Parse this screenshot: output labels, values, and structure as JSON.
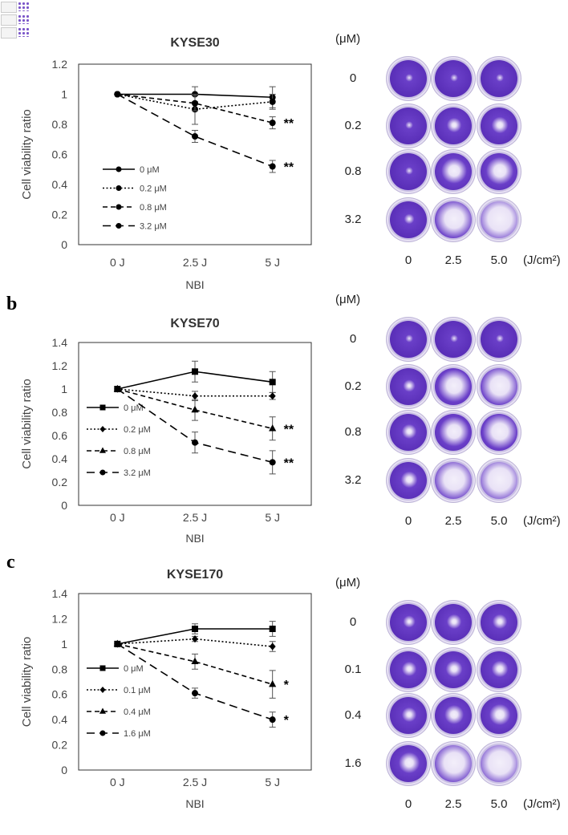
{
  "figure": {
    "panel_labels": [
      "b",
      "c"
    ],
    "x_axis_title": "NBI",
    "y_axis_title": "Cell viability ratio",
    "concentration_unit": "(μM)",
    "energy_unit": "(J/cm²)",
    "energy_values": [
      "0",
      "2.5",
      "5.0"
    ]
  },
  "chart_data": [
    {
      "type": "line",
      "title": "KYSE30",
      "xlabel": "NBI",
      "ylabel": "Cell viability ratio",
      "categories": [
        "0 J",
        "2.5 J",
        "5 J"
      ],
      "yticks": [
        "0",
        "0.2",
        "0.4",
        "0.6",
        "0.8",
        "1",
        "1.2"
      ],
      "ylim": [
        0,
        1.2
      ],
      "legend_position": "bottom-left",
      "series": [
        {
          "name": "0 μM",
          "dash": "solid",
          "marker": "circle",
          "values": [
            1.0,
            1.0,
            0.98
          ],
          "errors": [
            0,
            0.05,
            0.07
          ],
          "significance": ""
        },
        {
          "name": "0.2 μM",
          "dash": "dotted",
          "marker": "circle",
          "values": [
            1.0,
            0.9,
            0.95
          ],
          "errors": [
            0,
            0.1,
            0.05
          ],
          "significance": ""
        },
        {
          "name": "0.8 μM",
          "dash": "dashed",
          "marker": "circle",
          "values": [
            1.0,
            0.94,
            0.81
          ],
          "errors": [
            0,
            0.05,
            0.04
          ],
          "significance": "**"
        },
        {
          "name": "3.2 μM",
          "dash": "longdash",
          "marker": "circle",
          "values": [
            1.0,
            0.72,
            0.52
          ],
          "errors": [
            0,
            0.04,
            0.04
          ],
          "significance": "**"
        }
      ]
    },
    {
      "type": "line",
      "title": "KYSE70",
      "xlabel": "NBI",
      "ylabel": "Cell viability ratio",
      "categories": [
        "0 J",
        "2.5 J",
        "5 J"
      ],
      "yticks": [
        "0",
        "0.2",
        "0.4",
        "0.6",
        "0.8",
        "1",
        "1.2",
        "1.4"
      ],
      "ylim": [
        0,
        1.4
      ],
      "legend_position": "bottom-left",
      "series": [
        {
          "name": "0 μM",
          "dash": "solid",
          "marker": "square",
          "values": [
            1.0,
            1.15,
            1.06
          ],
          "errors": [
            0,
            0.09,
            0.09
          ],
          "significance": ""
        },
        {
          "name": "0.2 μM",
          "dash": "dotted",
          "marker": "diamond",
          "values": [
            1.0,
            0.94,
            0.94
          ],
          "errors": [
            0,
            0.04,
            0.03
          ],
          "significance": ""
        },
        {
          "name": "0.8 μM",
          "dash": "dashed",
          "marker": "triangle",
          "values": [
            1.0,
            0.82,
            0.66
          ],
          "errors": [
            0,
            0.09,
            0.1
          ],
          "significance": "**"
        },
        {
          "name": "3.2 μM",
          "dash": "longdash",
          "marker": "circle",
          "values": [
            1.0,
            0.54,
            0.37
          ],
          "errors": [
            0,
            0.09,
            0.1
          ],
          "significance": "**"
        }
      ]
    },
    {
      "type": "line",
      "title": "KYSE170",
      "xlabel": "NBI",
      "ylabel": "Cell viability ratio",
      "categories": [
        "0 J",
        "2.5 J",
        "5 J"
      ],
      "yticks": [
        "0",
        "0.2",
        "0.4",
        "0.6",
        "0.8",
        "1",
        "1.2",
        "1.4"
      ],
      "ylim": [
        0,
        1.4
      ],
      "legend_position": "bottom-left",
      "series": [
        {
          "name": "0 μM",
          "dash": "solid",
          "marker": "square",
          "values": [
            1.0,
            1.12,
            1.12
          ],
          "errors": [
            0,
            0.04,
            0.06
          ],
          "significance": ""
        },
        {
          "name": "0.1 μM",
          "dash": "dotted",
          "marker": "diamond",
          "values": [
            1.0,
            1.04,
            0.98
          ],
          "errors": [
            0,
            0.02,
            0.04
          ],
          "significance": ""
        },
        {
          "name": "0.4 μM",
          "dash": "dashed",
          "marker": "triangle",
          "values": [
            1.0,
            0.86,
            0.68
          ],
          "errors": [
            0,
            0.06,
            0.11
          ],
          "significance": "*"
        },
        {
          "name": "1.6 μM",
          "dash": "longdash",
          "marker": "circle",
          "values": [
            1.0,
            0.61,
            0.4
          ],
          "errors": [
            0,
            0.04,
            0.06
          ],
          "significance": "*"
        }
      ]
    }
  ],
  "plates": [
    {
      "concentrations": [
        "0",
        "0.2",
        "0.8",
        "3.2"
      ]
    },
    {
      "concentrations": [
        "0",
        "0.2",
        "0.8",
        "3.2"
      ]
    },
    {
      "concentrations": [
        "0",
        "0.1",
        "0.4",
        "1.6"
      ]
    }
  ],
  "colors": {
    "stain": "#6a3fc8",
    "stain_dark": "#4a1fa8",
    "line": "#000000"
  }
}
